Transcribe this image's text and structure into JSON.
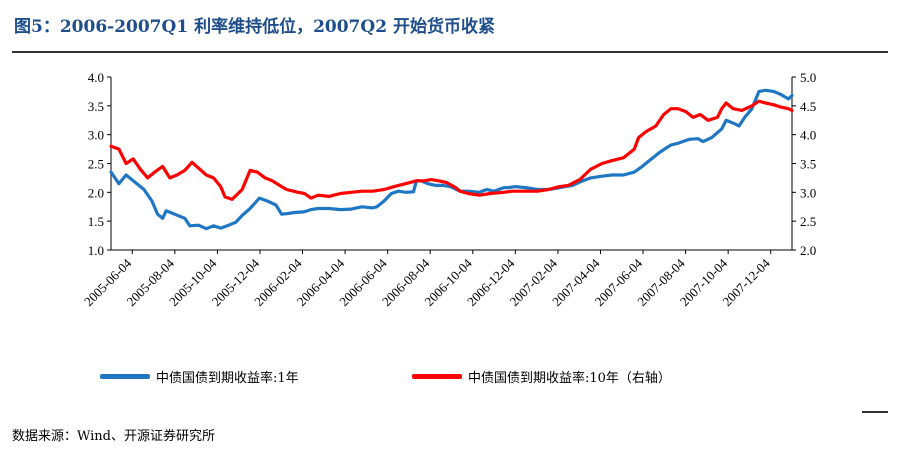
{
  "title": "图5：2006-2007Q1 利率维持低位，2007Q2 开始货币收紧",
  "source": "数据来源：Wind、开源证券研究所",
  "chart_data": {
    "type": "line",
    "left_axis": {
      "ylim": [
        1.0,
        4.0
      ],
      "ticks": [
        "1.0",
        "1.5",
        "2.0",
        "2.5",
        "3.0",
        "3.5",
        "4.0"
      ]
    },
    "right_axis": {
      "ylim": [
        2.0,
        5.0
      ],
      "ticks": [
        "2.0",
        "2.5",
        "3.0",
        "3.5",
        "4.0",
        "4.5",
        "5.0"
      ]
    },
    "x_ticks": [
      "2005-06-04",
      "2005-08-04",
      "2005-10-04",
      "2005-12-04",
      "2006-02-04",
      "2006-04-04",
      "2006-06-04",
      "2006-08-04",
      "2006-10-04",
      "2006-12-04",
      "2007-02-04",
      "2007-04-04",
      "2007-06-04",
      "2007-08-04",
      "2007-10-04",
      "2007-12-04"
    ],
    "x_range": [
      "2005-06-04",
      "2008-01-10"
    ],
    "series": [
      {
        "name": "中债国债到期收益率:1年",
        "axis": "left",
        "color": "#1f77c4",
        "points": [
          [
            "2005-06-04",
            2.35
          ],
          [
            "2005-06-15",
            2.15
          ],
          [
            "2005-06-25",
            2.3
          ],
          [
            "2005-07-05",
            2.2
          ],
          [
            "2005-07-20",
            2.05
          ],
          [
            "2005-07-31",
            1.85
          ],
          [
            "2005-08-08",
            1.62
          ],
          [
            "2005-08-15",
            1.55
          ],
          [
            "2005-08-20",
            1.68
          ],
          [
            "2005-09-01",
            1.62
          ],
          [
            "2005-09-15",
            1.55
          ],
          [
            "2005-09-22",
            1.42
          ],
          [
            "2005-10-04",
            1.43
          ],
          [
            "2005-10-15",
            1.37
          ],
          [
            "2005-10-25",
            1.42
          ],
          [
            "2005-11-04",
            1.38
          ],
          [
            "2005-11-15",
            1.43
          ],
          [
            "2005-11-25",
            1.48
          ],
          [
            "2005-12-04",
            1.6
          ],
          [
            "2005-12-15",
            1.72
          ],
          [
            "2005-12-28",
            1.9
          ],
          [
            "2006-01-08",
            1.85
          ],
          [
            "2006-01-20",
            1.78
          ],
          [
            "2006-01-28",
            1.62
          ],
          [
            "2006-02-04",
            1.63
          ],
          [
            "2006-02-15",
            1.65
          ],
          [
            "2006-02-28",
            1.66
          ],
          [
            "2006-03-10",
            1.7
          ],
          [
            "2006-03-20",
            1.72
          ],
          [
            "2006-04-04",
            1.72
          ],
          [
            "2006-04-20",
            1.7
          ],
          [
            "2006-05-05",
            1.71
          ],
          [
            "2006-05-20",
            1.75
          ],
          [
            "2006-06-04",
            1.73
          ],
          [
            "2006-06-10",
            1.75
          ],
          [
            "2006-06-20",
            1.85
          ],
          [
            "2006-06-30",
            1.98
          ],
          [
            "2006-07-10",
            2.02
          ],
          [
            "2006-07-20",
            2.0
          ],
          [
            "2006-07-31",
            2.01
          ],
          [
            "2006-08-04",
            2.2
          ],
          [
            "2006-08-10",
            2.2
          ],
          [
            "2006-08-20",
            2.15
          ],
          [
            "2006-08-31",
            2.12
          ],
          [
            "2006-09-10",
            2.12
          ],
          [
            "2006-09-20",
            2.1
          ],
          [
            "2006-10-04",
            2.02
          ],
          [
            "2006-10-15",
            2.02
          ],
          [
            "2006-10-31",
            2.0
          ],
          [
            "2006-11-10",
            2.05
          ],
          [
            "2006-11-20",
            2.02
          ],
          [
            "2006-12-04",
            2.08
          ],
          [
            "2006-12-10",
            2.08
          ],
          [
            "2006-12-20",
            2.1
          ],
          [
            "2007-01-04",
            2.08
          ],
          [
            "2007-01-20",
            2.05
          ],
          [
            "2007-02-04",
            2.05
          ],
          [
            "2007-02-15",
            2.07
          ],
          [
            "2007-02-28",
            2.1
          ],
          [
            "2007-03-10",
            2.12
          ],
          [
            "2007-03-20",
            2.18
          ],
          [
            "2007-04-04",
            2.25
          ],
          [
            "2007-04-20",
            2.28
          ],
          [
            "2007-05-04",
            2.3
          ],
          [
            "2007-05-20",
            2.3
          ],
          [
            "2007-06-04",
            2.35
          ],
          [
            "2007-06-15",
            2.45
          ],
          [
            "2007-06-28",
            2.58
          ],
          [
            "2007-07-10",
            2.7
          ],
          [
            "2007-07-25",
            2.82
          ],
          [
            "2007-08-04",
            2.85
          ],
          [
            "2007-08-20",
            2.92
          ],
          [
            "2007-09-01",
            2.93
          ],
          [
            "2007-09-08",
            2.88
          ],
          [
            "2007-09-20",
            2.95
          ],
          [
            "2007-10-04",
            3.1
          ],
          [
            "2007-10-10",
            3.25
          ],
          [
            "2007-10-20",
            3.2
          ],
          [
            "2007-10-28",
            3.15
          ],
          [
            "2007-11-05",
            3.3
          ],
          [
            "2007-11-15",
            3.45
          ],
          [
            "2007-11-25",
            3.75
          ],
          [
            "2007-12-04",
            3.77
          ],
          [
            "2007-12-15",
            3.75
          ],
          [
            "2007-12-25",
            3.7
          ],
          [
            "2008-01-05",
            3.62
          ],
          [
            "2008-01-10",
            3.68
          ]
        ]
      },
      {
        "name": "中债国债到期收益率:10年（右轴）",
        "axis": "right",
        "color": "#ff0000",
        "points": [
          [
            "2005-06-04",
            3.8
          ],
          [
            "2005-06-15",
            3.75
          ],
          [
            "2005-06-25",
            3.5
          ],
          [
            "2005-07-05",
            3.58
          ],
          [
            "2005-07-15",
            3.4
          ],
          [
            "2005-07-25",
            3.25
          ],
          [
            "2005-08-04",
            3.35
          ],
          [
            "2005-08-15",
            3.45
          ],
          [
            "2005-08-25",
            3.25
          ],
          [
            "2005-09-04",
            3.3
          ],
          [
            "2005-09-15",
            3.38
          ],
          [
            "2005-09-25",
            3.52
          ],
          [
            "2005-10-04",
            3.42
          ],
          [
            "2005-10-15",
            3.3
          ],
          [
            "2005-10-25",
            3.25
          ],
          [
            "2005-11-04",
            3.1
          ],
          [
            "2005-11-10",
            2.92
          ],
          [
            "2005-11-20",
            2.88
          ],
          [
            "2005-12-04",
            3.05
          ],
          [
            "2005-12-15",
            3.38
          ],
          [
            "2005-12-25",
            3.35
          ],
          [
            "2006-01-05",
            3.25
          ],
          [
            "2006-01-15",
            3.2
          ],
          [
            "2006-01-28",
            3.1
          ],
          [
            "2006-02-04",
            3.05
          ],
          [
            "2006-02-20",
            3.0
          ],
          [
            "2006-03-01",
            2.98
          ],
          [
            "2006-03-10",
            2.9
          ],
          [
            "2006-03-20",
            2.95
          ],
          [
            "2006-04-04",
            2.93
          ],
          [
            "2006-04-20",
            2.98
          ],
          [
            "2006-05-05",
            3.0
          ],
          [
            "2006-05-20",
            3.02
          ],
          [
            "2006-06-04",
            3.02
          ],
          [
            "2006-06-20",
            3.05
          ],
          [
            "2006-07-04",
            3.1
          ],
          [
            "2006-07-20",
            3.15
          ],
          [
            "2006-08-04",
            3.2
          ],
          [
            "2006-08-15",
            3.2
          ],
          [
            "2006-08-25",
            3.22
          ],
          [
            "2006-09-04",
            3.2
          ],
          [
            "2006-09-15",
            3.17
          ],
          [
            "2006-09-28",
            3.08
          ],
          [
            "2006-10-04",
            3.02
          ],
          [
            "2006-10-15",
            2.98
          ],
          [
            "2006-10-31",
            2.95
          ],
          [
            "2006-11-15",
            2.98
          ],
          [
            "2006-12-04",
            3.0
          ],
          [
            "2006-12-15",
            3.02
          ],
          [
            "2007-01-04",
            3.02
          ],
          [
            "2007-01-20",
            3.02
          ],
          [
            "2007-02-04",
            3.05
          ],
          [
            "2007-02-20",
            3.1
          ],
          [
            "2007-03-04",
            3.12
          ],
          [
            "2007-03-20",
            3.22
          ],
          [
            "2007-04-04",
            3.4
          ],
          [
            "2007-04-20",
            3.5
          ],
          [
            "2007-05-04",
            3.55
          ],
          [
            "2007-05-20",
            3.6
          ],
          [
            "2007-06-04",
            3.75
          ],
          [
            "2007-06-10",
            3.95
          ],
          [
            "2007-06-20",
            4.05
          ],
          [
            "2007-07-04",
            4.15
          ],
          [
            "2007-07-15",
            4.35
          ],
          [
            "2007-07-25",
            4.45
          ],
          [
            "2007-08-04",
            4.45
          ],
          [
            "2007-08-15",
            4.4
          ],
          [
            "2007-08-25",
            4.3
          ],
          [
            "2007-09-04",
            4.35
          ],
          [
            "2007-09-15",
            4.25
          ],
          [
            "2007-09-28",
            4.3
          ],
          [
            "2007-10-04",
            4.45
          ],
          [
            "2007-10-10",
            4.55
          ],
          [
            "2007-10-20",
            4.45
          ],
          [
            "2007-11-01",
            4.42
          ],
          [
            "2007-11-15",
            4.5
          ],
          [
            "2007-11-25",
            4.58
          ],
          [
            "2007-12-04",
            4.55
          ],
          [
            "2007-12-15",
            4.52
          ],
          [
            "2007-12-25",
            4.48
          ],
          [
            "2008-01-05",
            4.45
          ],
          [
            "2008-01-10",
            4.42
          ]
        ]
      }
    ]
  }
}
